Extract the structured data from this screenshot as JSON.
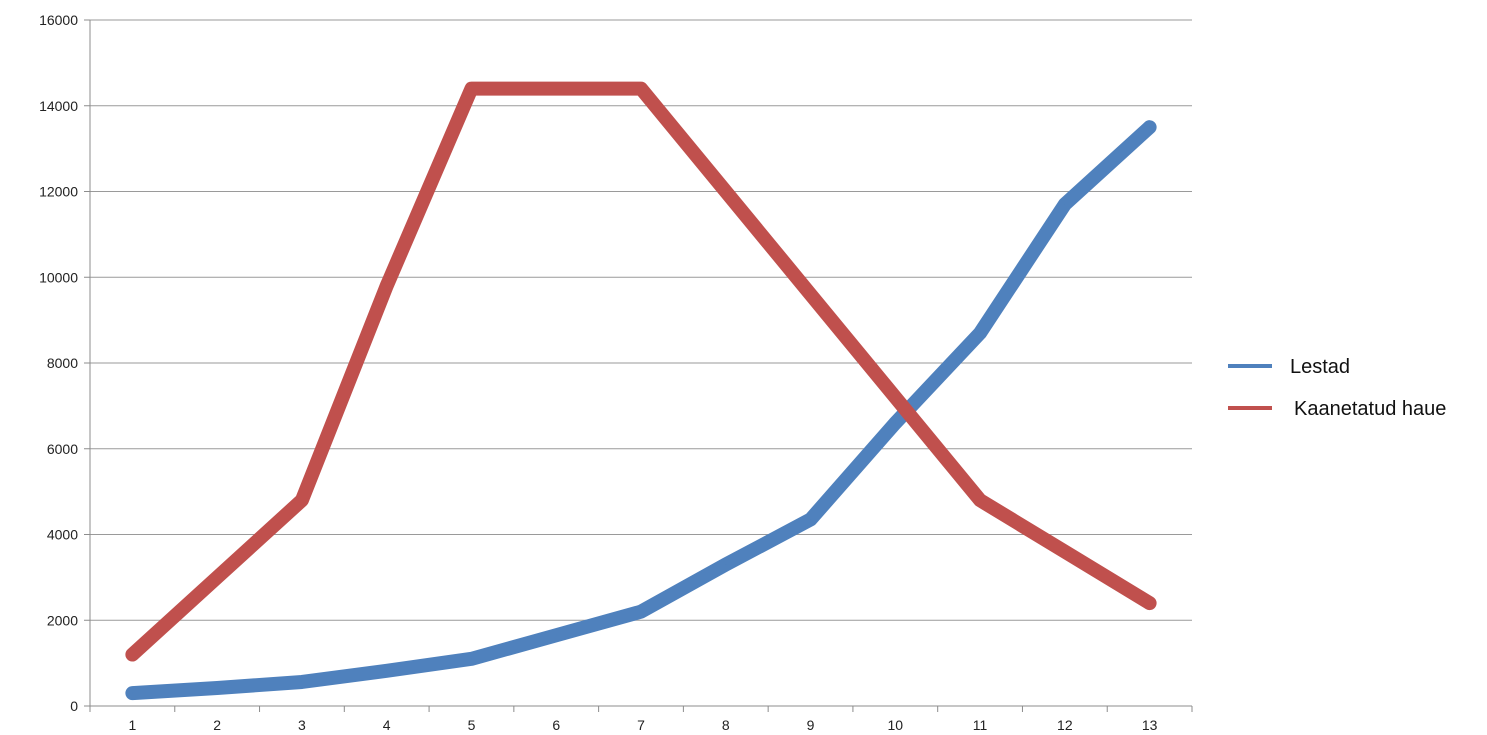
{
  "chart_data": {
    "type": "line",
    "title": "",
    "xlabel": "",
    "ylabel": "",
    "categories": [
      "1",
      "2",
      "3",
      "4",
      "5",
      "6",
      "7",
      "8",
      "9",
      "10",
      "11",
      "12",
      "13"
    ],
    "ylim": [
      0,
      16000
    ],
    "y_ticks": [
      0,
      2000,
      4000,
      6000,
      8000,
      10000,
      12000,
      14000,
      16000
    ],
    "grid": "horizontal",
    "legend_position": "right",
    "series": [
      {
        "name": "Lestad",
        "color": "#4F81BD",
        "values": [
          300,
          420,
          560,
          820,
          1100,
          1650,
          2200,
          3300,
          4350,
          6600,
          8700,
          11700,
          13500
        ]
      },
      {
        "name": "Kaanetatud haue",
        "color": "#C0504D",
        "values": [
          1200,
          3000,
          4800,
          9800,
          14400,
          14400,
          14400,
          12000,
          9600,
          7200,
          4800,
          3600,
          2400
        ]
      }
    ]
  }
}
